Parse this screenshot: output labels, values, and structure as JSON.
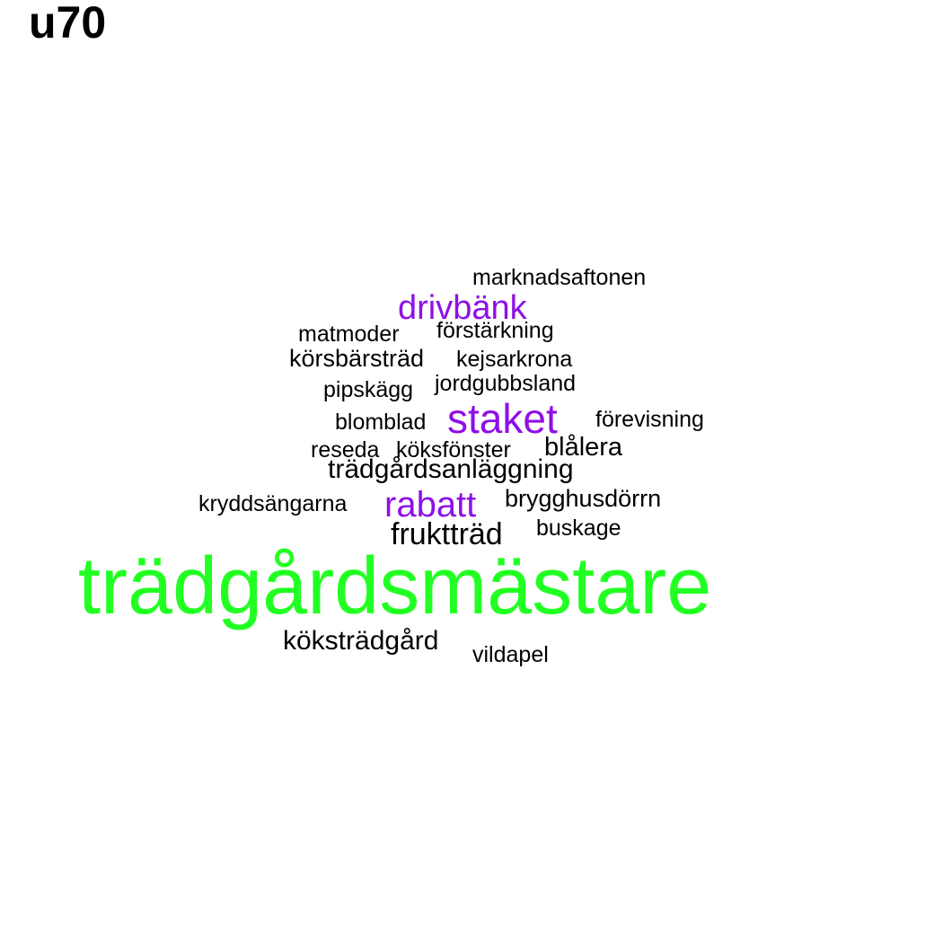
{
  "title": "u70",
  "colors": {
    "primary": "#22ff22",
    "secondary": "#8f0fe8",
    "default": "#000000"
  },
  "words": {
    "w0": "trädgårdsmästare",
    "w1": "staket",
    "w2": "rabatt",
    "w3": "drivbänk",
    "w4": "fruktträd",
    "w5": "köksträdgård",
    "w6": "trädgårdsanläggning",
    "w7": "blålera",
    "w8": "brygghusdörrn",
    "w9": "körsbärsträd",
    "w10": "marknadsaftonen",
    "w11": "förstärkning",
    "w12": "matmoder",
    "w13": "kejsarkrona",
    "w14": "jordgubbsland",
    "w15": "pipskägg",
    "w16": "blomblad",
    "w17": "förevisning",
    "w18": "reseda",
    "w19": "köksfönster",
    "w20": "kryddsängarna",
    "w21": "buskage",
    "w22": "vildapel"
  }
}
